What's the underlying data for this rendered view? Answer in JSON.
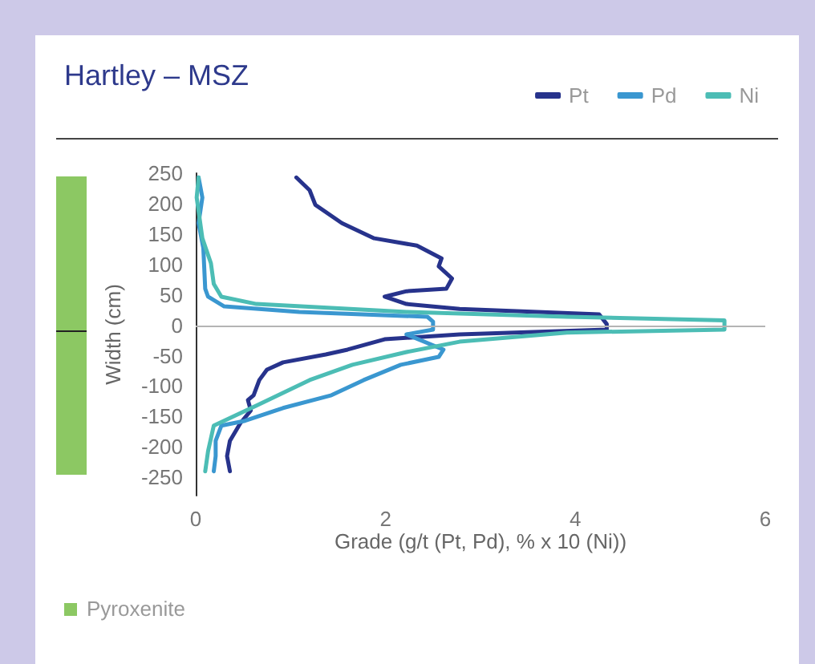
{
  "chart_data": {
    "type": "line",
    "title": "Hartley – MSZ",
    "xlabel": "Grade (g/t (Pt, Pd), % x 10 (Ni))",
    "ylabel": "Width (cm)",
    "xlim": [
      0,
      6
    ],
    "xticks": [
      0,
      2,
      4,
      6
    ],
    "ylim": [
      -280,
      250
    ],
    "yticks": [
      -250,
      -200,
      -150,
      -100,
      -50,
      0,
      50,
      100,
      150,
      200,
      250
    ],
    "legend": "top right",
    "grid": false,
    "marker": "none",
    "line_style": "solid",
    "ref_lines": [
      {
        "axis": "y",
        "value": 0,
        "color": "#b4b4b4"
      }
    ],
    "annotations": [
      "Pyroxenite"
    ],
    "series": [
      {
        "name": "Pt",
        "color": "#27338c",
        "x": [
          1.06,
          1.2,
          1.26,
          1.54,
          1.88,
          2.33,
          2.59,
          2.56,
          2.7,
          2.64,
          2.22,
          1.99,
          2.22,
          2.78,
          4.25,
          4.33,
          4.33,
          2.78,
          1.99,
          1.6,
          1.37,
          0.92,
          0.75,
          0.67,
          0.61,
          0.55,
          0.58,
          0.47,
          0.36,
          0.33,
          0.36
        ],
        "values": [
          243,
          222,
          198,
          168,
          143,
          131,
          110,
          97,
          77,
          60,
          56,
          47,
          35,
          27,
          18,
          2,
          -7,
          -15,
          -23,
          -40,
          -48,
          -61,
          -73,
          -90,
          -115,
          -123,
          -140,
          -161,
          -190,
          -215,
          -240
        ]
      },
      {
        "name": "Pd",
        "color": "#3a97d0",
        "x": [
          0.03,
          0.07,
          0.03,
          0.08,
          0.1,
          0.13,
          0.3,
          1.09,
          2.44,
          2.5,
          2.5,
          2.22,
          2.61,
          2.56,
          2.16,
          1.77,
          1.43,
          0.92,
          0.52,
          0.27,
          0.21,
          0.21,
          0.19
        ],
        "values": [
          243,
          210,
          168,
          127,
          60,
          47,
          31,
          22,
          14,
          6,
          -7,
          -15,
          -40,
          -52,
          -65,
          -90,
          -115,
          -136,
          -157,
          -165,
          -190,
          -215,
          -240
        ]
      },
      {
        "name": "Ni",
        "color": "#4cbdb5",
        "x": [
          0.03,
          0.01,
          0.07,
          0.16,
          0.19,
          0.27,
          0.64,
          2.22,
          3.91,
          5.57,
          5.57,
          3.91,
          2.78,
          2.22,
          1.65,
          1.2,
          0.64,
          0.19,
          0.13,
          0.1
        ],
        "values": [
          243,
          210,
          143,
          102,
          68,
          47,
          35,
          22,
          14,
          8,
          -7,
          -12,
          -27,
          -44,
          -65,
          -90,
          -132,
          -165,
          -207,
          -240
        ]
      }
    ]
  }
}
